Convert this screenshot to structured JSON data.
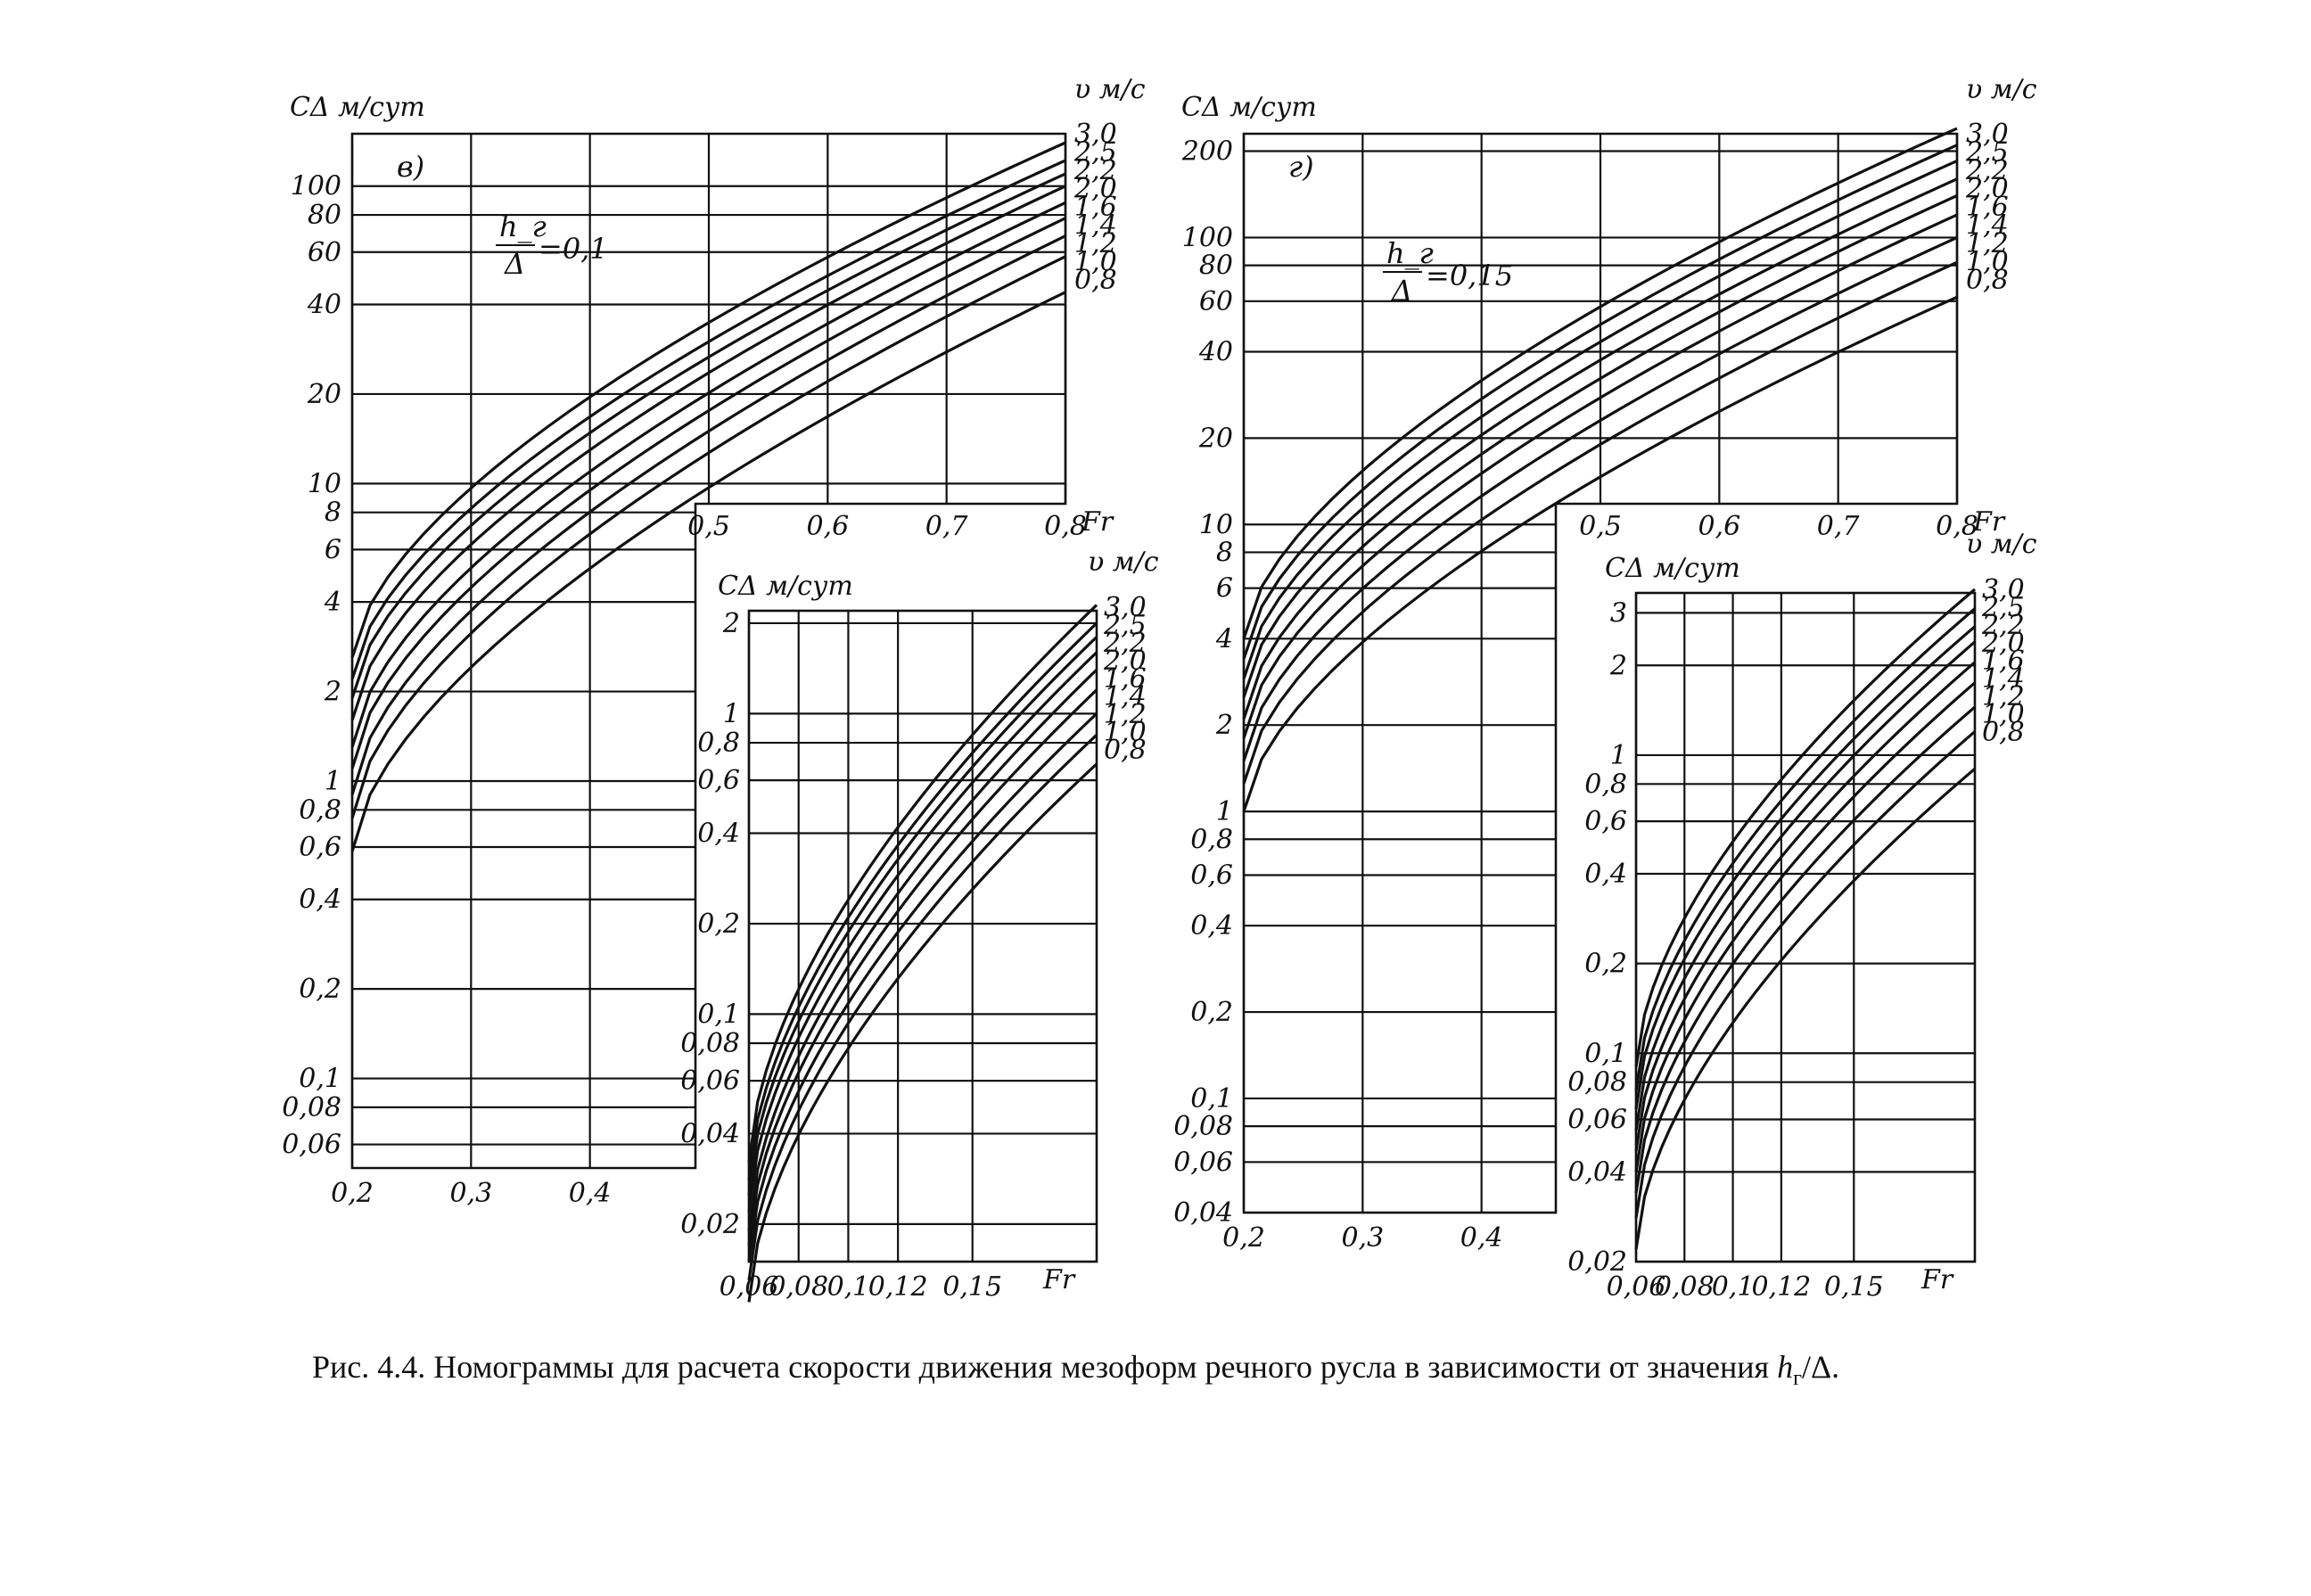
{
  "caption": "Рис. 4.4. Номограммы для расчета скорости движения мезоформ речного русла в зависимости от значения h_г/Δ.",
  "chart_data": [
    {
      "type": "line",
      "panel_label": "в)",
      "ylabel": "C_Δ м/сут",
      "series_label": "υ м/с",
      "ratio_label": {
        "num": "h_г",
        "den": "Δ",
        "value": "=0,1"
      },
      "scale": "log-y",
      "main": {
        "x_ticks": [
          "0,5",
          "0,6",
          "0,7",
          "0,8"
        ],
        "x_tick_values": [
          0.5,
          0.6,
          0.7,
          0.8
        ],
        "x_label": "Fr",
        "y_ticks": [
          "100",
          "80",
          "60",
          "40",
          "20",
          "10",
          "8",
          "6",
          "4",
          "2",
          "1",
          "0,8",
          "0,6",
          "0,4",
          "0,2",
          "0,1",
          "0,08",
          "0,06"
        ],
        "y_tick_values": [
          100,
          80,
          60,
          40,
          20,
          10,
          8,
          6,
          4,
          2,
          1,
          0.8,
          0.6,
          0.4,
          0.2,
          0.1,
          0.08,
          0.06
        ],
        "low_x_ticks": [
          "0,2",
          "0,3",
          "0,4"
        ],
        "low_x_tick_values": [
          0.2,
          0.3,
          0.4
        ],
        "xlim": [
          0.2,
          0.8
        ],
        "ylim": [
          0.05,
          150
        ],
        "series": [
          {
            "name": "3,0",
            "x": [
              0.2,
              0.8
            ],
            "y": [
              2.6,
              140
            ]
          },
          {
            "name": "2,5",
            "x": [
              0.2,
              0.8
            ],
            "y": [
              2.2,
              122
            ]
          },
          {
            "name": "2,2",
            "x": [
              0.2,
              0.8
            ],
            "y": [
              1.9,
              110
            ]
          },
          {
            "name": "2,0",
            "x": [
              0.2,
              0.8
            ],
            "y": [
              1.6,
              100
            ]
          },
          {
            "name": "1,6",
            "x": [
              0.2,
              0.8
            ],
            "y": [
              1.3,
              88
            ]
          },
          {
            "name": "1,4",
            "x": [
              0.2,
              0.8
            ],
            "y": [
              1.1,
              78
            ]
          },
          {
            "name": "1,2",
            "x": [
              0.2,
              0.8
            ],
            "y": [
              0.9,
              68
            ]
          },
          {
            "name": "1,0",
            "x": [
              0.2,
              0.8
            ],
            "y": [
              0.75,
              58
            ]
          },
          {
            "name": "0,8",
            "x": [
              0.2,
              0.8
            ],
            "y": [
              0.58,
              44
            ]
          }
        ]
      },
      "inset": {
        "x_ticks": [
          "0,06",
          "0,08",
          "0,1",
          "0,12",
          "0,15"
        ],
        "x_tick_values": [
          0.06,
          0.08,
          0.1,
          0.12,
          0.15
        ],
        "x_label": "Fr",
        "y_ticks": [
          "2",
          "1",
          "0,8",
          "0,6",
          "0,4",
          "0,2",
          "0,1",
          "0,08",
          "0,06",
          "0,04",
          "0,02"
        ],
        "y_tick_values": [
          2,
          1,
          0.8,
          0.6,
          0.4,
          0.2,
          0.1,
          0.08,
          0.06,
          0.04,
          0.02
        ],
        "xlim": [
          0.06,
          0.2
        ],
        "ylim": [
          0.015,
          2.2
        ],
        "series": [
          {
            "name": "3,0",
            "x": [
              0.06,
              0.2
            ],
            "y": [
              0.032,
              2.3
            ]
          },
          {
            "name": "2,5",
            "x": [
              0.06,
              0.2
            ],
            "y": [
              0.028,
              2.0
            ]
          },
          {
            "name": "2,2",
            "x": [
              0.06,
              0.2
            ],
            "y": [
              0.025,
              1.8
            ]
          },
          {
            "name": "2,0",
            "x": [
              0.06,
              0.2
            ],
            "y": [
              0.022,
              1.6
            ]
          },
          {
            "name": "1,6",
            "x": [
              0.06,
              0.2
            ],
            "y": [
              0.019,
              1.4
            ]
          },
          {
            "name": "1,4",
            "x": [
              0.06,
              0.2
            ],
            "y": [
              0.017,
              1.2
            ]
          },
          {
            "name": "1,2",
            "x": [
              0.06,
              0.2
            ],
            "y": [
              0.015,
              1.0
            ]
          },
          {
            "name": "1,0",
            "x": [
              0.06,
              0.2
            ],
            "y": [
              0.013,
              0.85
            ]
          },
          {
            "name": "0,8",
            "x": [
              0.06,
              0.2
            ],
            "y": [
              0.011,
              0.68
            ]
          }
        ]
      }
    },
    {
      "type": "line",
      "panel_label": "г)",
      "ylabel": "C_Δ м/сут",
      "series_label": "υ м/с",
      "ratio_label": {
        "num": "h_г",
        "den": "Δ",
        "value": "=0,15"
      },
      "scale": "log-y",
      "main": {
        "x_ticks": [
          "0,5",
          "0,6",
          "0,7",
          "0,8"
        ],
        "x_tick_values": [
          0.5,
          0.6,
          0.7,
          0.8
        ],
        "x_label": "Fr",
        "y_ticks": [
          "200",
          "100",
          "80",
          "60",
          "40",
          "20",
          "10",
          "8",
          "6",
          "4",
          "2",
          "1",
          "0,8",
          "0,6",
          "0,4",
          "0,2",
          "0,1",
          "0,08",
          "0,06",
          "0,04"
        ],
        "y_tick_values": [
          200,
          100,
          80,
          60,
          40,
          20,
          10,
          8,
          6,
          4,
          2,
          1,
          0.8,
          0.6,
          0.4,
          0.2,
          0.1,
          0.08,
          0.06,
          0.04
        ],
        "low_x_ticks": [
          "0,2",
          "0,3",
          "0,4"
        ],
        "low_x_tick_values": [
          0.2,
          0.3,
          0.4
        ],
        "xlim": [
          0.2,
          0.8
        ],
        "ylim": [
          0.04,
          230
        ],
        "series": [
          {
            "name": "3,0",
            "x": [
              0.2,
              0.8
            ],
            "y": [
              4.0,
              240
            ]
          },
          {
            "name": "2,5",
            "x": [
              0.2,
              0.8
            ],
            "y": [
              3.4,
              210
            ]
          },
          {
            "name": "2,2",
            "x": [
              0.2,
              0.8
            ],
            "y": [
              2.9,
              185
            ]
          },
          {
            "name": "2,0",
            "x": [
              0.2,
              0.8
            ],
            "y": [
              2.5,
              160
            ]
          },
          {
            "name": "1,6",
            "x": [
              0.2,
              0.8
            ],
            "y": [
              2.1,
              140
            ]
          },
          {
            "name": "1,4",
            "x": [
              0.2,
              0.8
            ],
            "y": [
              1.8,
              120
            ]
          },
          {
            "name": "1,2",
            "x": [
              0.2,
              0.8
            ],
            "y": [
              1.5,
              100
            ]
          },
          {
            "name": "1,0",
            "x": [
              0.2,
              0.8
            ],
            "y": [
              1.25,
              82
            ]
          },
          {
            "name": "0,8",
            "x": [
              0.2,
              0.8
            ],
            "y": [
              1.0,
              62
            ]
          }
        ]
      },
      "inset": {
        "x_ticks": [
          "0,06",
          "0,08",
          "0,1",
          "0,12",
          "0,15"
        ],
        "x_tick_values": [
          0.06,
          0.08,
          0.1,
          0.12,
          0.15
        ],
        "x_label": "Fr",
        "y_ticks": [
          "3",
          "2",
          "1",
          "0,8",
          "0,6",
          "0,4",
          "0,2",
          "0,1",
          "0,08",
          "0,06",
          "0,04",
          "0,02"
        ],
        "y_tick_values": [
          3,
          2,
          1,
          0.8,
          0.6,
          0.4,
          0.2,
          0.1,
          0.08,
          0.06,
          0.04,
          0.02
        ],
        "xlim": [
          0.06,
          0.2
        ],
        "ylim": [
          0.02,
          3.5
        ],
        "series": [
          {
            "name": "3,0",
            "x": [
              0.06,
              0.2
            ],
            "y": [
              0.09,
              3.6
            ]
          },
          {
            "name": "2,5",
            "x": [
              0.06,
              0.2
            ],
            "y": [
              0.075,
              3.1
            ]
          },
          {
            "name": "2,2",
            "x": [
              0.06,
              0.2
            ],
            "y": [
              0.065,
              2.7
            ]
          },
          {
            "name": "2,0",
            "x": [
              0.06,
              0.2
            ],
            "y": [
              0.055,
              2.4
            ]
          },
          {
            "name": "1,6",
            "x": [
              0.06,
              0.2
            ],
            "y": [
              0.047,
              2.05
            ]
          },
          {
            "name": "1,4",
            "x": [
              0.06,
              0.2
            ],
            "y": [
              0.04,
              1.75
            ]
          },
          {
            "name": "1,2",
            "x": [
              0.06,
              0.2
            ],
            "y": [
              0.034,
              1.45
            ]
          },
          {
            "name": "1,0",
            "x": [
              0.06,
              0.2
            ],
            "y": [
              0.028,
              1.2
            ]
          },
          {
            "name": "0,8",
            "x": [
              0.06,
              0.2
            ],
            "y": [
              0.022,
              0.9
            ]
          }
        ]
      }
    }
  ]
}
